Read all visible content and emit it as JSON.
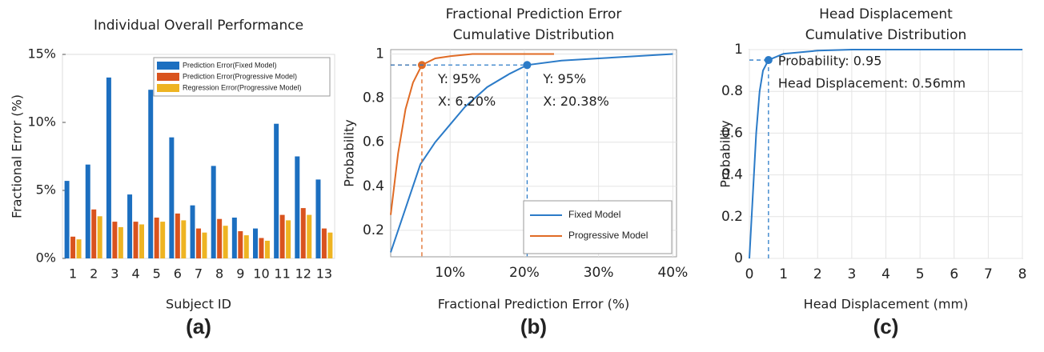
{
  "chart_data": [
    {
      "type": "bar",
      "title": [
        "Individual Overall Performance"
      ],
      "xlabel": "Subject ID",
      "ylabel": "Fractional Error (%)",
      "caption": "(a)",
      "categories": [
        "1",
        "2",
        "3",
        "4",
        "5",
        "6",
        "7",
        "8",
        "9",
        "10",
        "11",
        "12",
        "13"
      ],
      "series": [
        {
          "name": "Prediction Error(Fixed Model)",
          "color": "#1c6fc0",
          "values": [
            5.7,
            6.9,
            13.3,
            4.7,
            12.4,
            8.9,
            3.9,
            6.8,
            3.0,
            2.2,
            9.9,
            7.5,
            5.8
          ]
        },
        {
          "name": "Prediction Error(Progressive Model)",
          "color": "#d9531e",
          "values": [
            1.6,
            3.6,
            2.7,
            2.7,
            3.0,
            3.3,
            2.2,
            2.9,
            2.0,
            1.5,
            3.2,
            3.7,
            2.2
          ]
        },
        {
          "name": "Regression Error(Progressive Model)",
          "color": "#eeb422",
          "values": [
            1.4,
            3.1,
            2.3,
            2.5,
            2.7,
            2.8,
            1.9,
            2.4,
            1.7,
            1.3,
            2.8,
            3.2,
            1.9
          ]
        }
      ],
      "ylim": [
        0,
        15
      ],
      "yticks": [
        {
          "value": 0,
          "label": "0%"
        },
        {
          "value": 5,
          "label": "5%"
        },
        {
          "value": 10,
          "label": "10%"
        },
        {
          "value": 15,
          "label": "15%"
        }
      ],
      "grid": false,
      "legend": "upper right"
    },
    {
      "type": "line",
      "title": [
        "Fractional Prediction Error",
        "Cumulative Distribution"
      ],
      "xlabel": "Fractional Prediction Error (%)",
      "ylabel": "Probability",
      "caption": "(b)",
      "series": [
        {
          "name": "Fixed Model",
          "color": "#2b7bc8",
          "x": [
            2,
            4,
            6,
            8,
            10,
            12,
            15,
            18,
            20.38,
            25,
            30,
            35,
            40
          ],
          "values": [
            0.1,
            0.3,
            0.5,
            0.6,
            0.68,
            0.76,
            0.85,
            0.91,
            0.95,
            0.97,
            0.98,
            0.99,
            1.0
          ]
        },
        {
          "name": "Progressive Model",
          "color": "#e06b25",
          "x": [
            2,
            3,
            4,
            5,
            6.2,
            8,
            10,
            13,
            24
          ],
          "values": [
            0.27,
            0.55,
            0.75,
            0.87,
            0.95,
            0.98,
            0.99,
            1.0,
            1.0
          ]
        }
      ],
      "annotations": [
        {
          "x": 6.2,
          "y": 0.95,
          "color": "#e06b25",
          "text": [
            "Y: 95%",
            "X: 6.20%"
          ]
        },
        {
          "x": 20.38,
          "y": 0.95,
          "color": "#2b7bc8",
          "text": [
            "Y: 95%",
            "X: 20.38%"
          ]
        }
      ],
      "xlim": [
        2,
        40.5
      ],
      "xticks": [
        {
          "value": 10,
          "label": "10%"
        },
        {
          "value": 20,
          "label": "20%"
        },
        {
          "value": 30,
          "label": "30%"
        },
        {
          "value": 40,
          "label": "40%"
        }
      ],
      "ylim": [
        0.08,
        1.02
      ],
      "yticks": [
        0.2,
        0.4,
        0.6,
        0.8,
        1
      ],
      "grid": true,
      "legend": "lower right"
    },
    {
      "type": "line",
      "title": [
        "Head Displacement",
        "Cumulative Distribution"
      ],
      "xlabel": "Head Displacement (mm)",
      "ylabel": "Probability",
      "caption": "(c)",
      "series": [
        {
          "color": "#2b7bc8",
          "x": [
            0,
            0.1,
            0.2,
            0.3,
            0.4,
            0.56,
            1,
            2,
            3,
            8
          ],
          "values": [
            0,
            0.3,
            0.6,
            0.8,
            0.9,
            0.95,
            0.98,
            0.995,
            1.0,
            1.0
          ]
        }
      ],
      "annotations": [
        {
          "x": 0.56,
          "y": 0.95,
          "color": "#2b7bc8",
          "text": [
            "Probability: 0.95",
            "Head Displacement: 0.56mm"
          ]
        }
      ],
      "xlim": [
        0,
        8
      ],
      "xticks": [
        0,
        1,
        2,
        3,
        4,
        5,
        6,
        7,
        8
      ],
      "ylim": [
        0,
        1
      ],
      "yticks": [
        0,
        0.2,
        0.4,
        0.6,
        0.8,
        1
      ],
      "grid": true
    }
  ]
}
